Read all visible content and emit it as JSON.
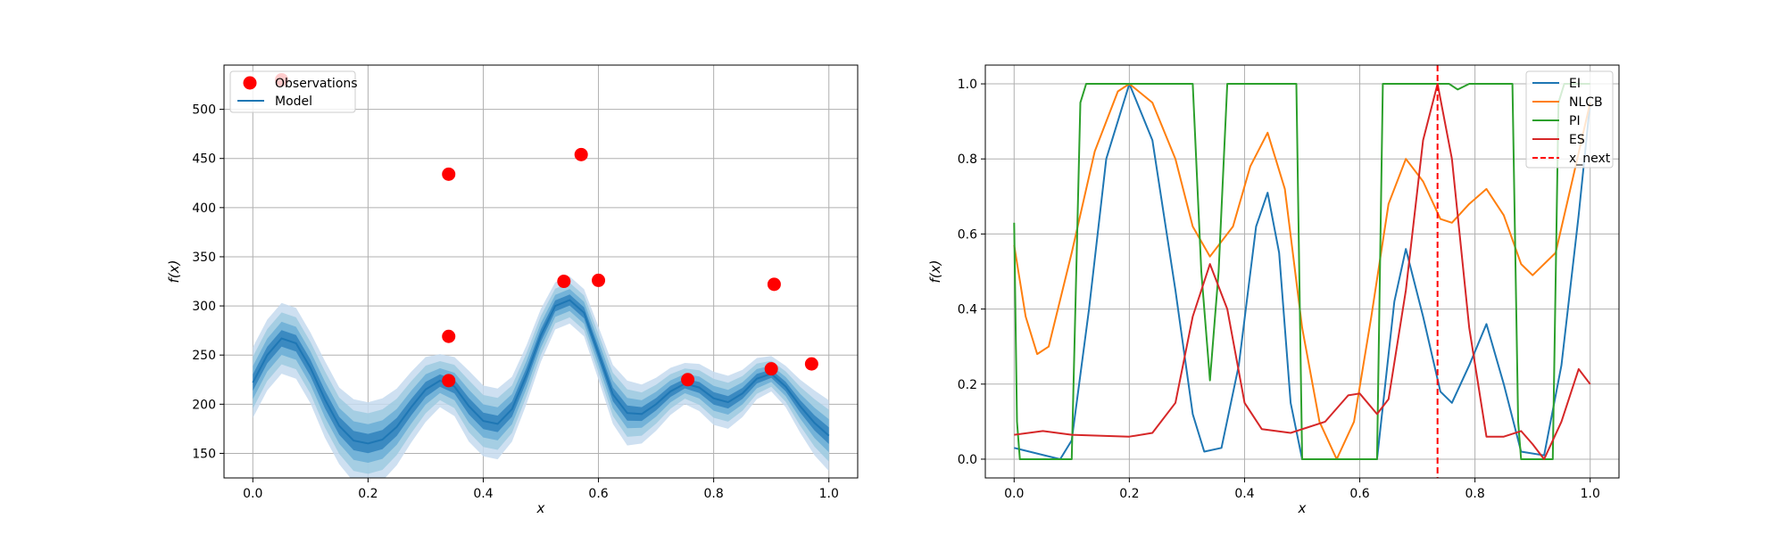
{
  "figure": {
    "background": "#ffffff"
  },
  "chart_data": [
    {
      "type": "scatter",
      "panel": "left",
      "xlabel": "x",
      "ylabel": "f(x)",
      "xlim": [
        -0.05,
        1.05
      ],
      "ylim": [
        125,
        545
      ],
      "xticks": [
        "0.0",
        "0.2",
        "0.4",
        "0.6",
        "0.8",
        "1.0"
      ],
      "yticks": [
        "150",
        "200",
        "250",
        "300",
        "350",
        "400",
        "450",
        "500"
      ],
      "grid": true,
      "legend": {
        "location": "top-left",
        "entries": [
          "Observations",
          "Model"
        ]
      },
      "observations": {
        "name": "Observations",
        "color": "#ff0000",
        "points": [
          {
            "x": 0.05,
            "y": 530
          },
          {
            "x": 0.34,
            "y": 434
          },
          {
            "x": 0.34,
            "y": 269
          },
          {
            "x": 0.34,
            "y": 224
          },
          {
            "x": 0.54,
            "y": 325
          },
          {
            "x": 0.57,
            "y": 454
          },
          {
            "x": 0.6,
            "y": 326
          },
          {
            "x": 0.755,
            "y": 225
          },
          {
            "x": 0.9,
            "y": 236
          },
          {
            "x": 0.905,
            "y": 322
          },
          {
            "x": 0.97,
            "y": 241
          }
        ]
      },
      "model": {
        "name": "Model",
        "color": "#1f77b4",
        "x": [
          0.0,
          0.025,
          0.05,
          0.075,
          0.1,
          0.125,
          0.15,
          0.175,
          0.2,
          0.225,
          0.25,
          0.275,
          0.3,
          0.325,
          0.35,
          0.375,
          0.4,
          0.425,
          0.45,
          0.475,
          0.5,
          0.525,
          0.55,
          0.575,
          0.6,
          0.625,
          0.65,
          0.675,
          0.7,
          0.725,
          0.75,
          0.775,
          0.8,
          0.825,
          0.85,
          0.875,
          0.9,
          0.925,
          0.95,
          0.975,
          1.0
        ],
        "mean": [
          222,
          250,
          267,
          262,
          237,
          205,
          178,
          163,
          160,
          164,
          177,
          197,
          215,
          224,
          218,
          198,
          183,
          180,
          195,
          230,
          270,
          300,
          306,
          293,
          252,
          210,
          191,
          190,
          200,
          213,
          221,
          217,
          206,
          202,
          211,
          226,
          231,
          218,
          198,
          181,
          168
        ],
        "band_sd": [
          12,
          12,
          12,
          12,
          12,
          13,
          13,
          14,
          14,
          14,
          13,
          12,
          11,
          9,
          10,
          12,
          12,
          12,
          11,
          10,
          9,
          8,
          8,
          8,
          9,
          10,
          11,
          10,
          9,
          8,
          7,
          8,
          9,
          9,
          8,
          7,
          6,
          7,
          9,
          11,
          12
        ]
      }
    },
    {
      "type": "line",
      "panel": "right",
      "xlabel": "x",
      "ylabel": "f(x)",
      "xlim": [
        -0.05,
        1.05
      ],
      "ylim": [
        -0.05,
        1.05
      ],
      "xticks": [
        "0.0",
        "0.2",
        "0.4",
        "0.6",
        "0.8",
        "1.0"
      ],
      "yticks": [
        "0.0",
        "0.2",
        "0.4",
        "0.6",
        "0.8",
        "1.0"
      ],
      "grid": true,
      "legend": {
        "location": "top-right",
        "entries": [
          "EI",
          "NLCB",
          "PI",
          "ES",
          "x_next"
        ]
      },
      "x_next": {
        "name": "x_next",
        "value": 0.735,
        "color": "#ff0000"
      },
      "series": [
        {
          "name": "EI",
          "color": "#1f77b4",
          "points": [
            [
              0,
              0.03
            ],
            [
              0.08,
              0
            ],
            [
              0.1,
              0.05
            ],
            [
              0.13,
              0.4
            ],
            [
              0.16,
              0.8
            ],
            [
              0.2,
              1.0
            ],
            [
              0.24,
              0.85
            ],
            [
              0.28,
              0.45
            ],
            [
              0.31,
              0.12
            ],
            [
              0.33,
              0.02
            ],
            [
              0.36,
              0.03
            ],
            [
              0.39,
              0.25
            ],
            [
              0.42,
              0.62
            ],
            [
              0.44,
              0.71
            ],
            [
              0.46,
              0.55
            ],
            [
              0.48,
              0.15
            ],
            [
              0.5,
              0
            ],
            [
              0.63,
              0
            ],
            [
              0.66,
              0.42
            ],
            [
              0.68,
              0.56
            ],
            [
              0.71,
              0.38
            ],
            [
              0.74,
              0.18
            ],
            [
              0.76,
              0.15
            ],
            [
              0.79,
              0.25
            ],
            [
              0.82,
              0.36
            ],
            [
              0.85,
              0.2
            ],
            [
              0.88,
              0.02
            ],
            [
              0.92,
              0.01
            ],
            [
              0.95,
              0.25
            ],
            [
              0.98,
              0.65
            ],
            [
              1.0,
              0.95
            ]
          ]
        },
        {
          "name": "NLCB",
          "color": "#ff7f0e",
          "points": [
            [
              0,
              0.57
            ],
            [
              0.02,
              0.38
            ],
            [
              0.04,
              0.28
            ],
            [
              0.06,
              0.3
            ],
            [
              0.1,
              0.55
            ],
            [
              0.14,
              0.82
            ],
            [
              0.18,
              0.98
            ],
            [
              0.2,
              1.0
            ],
            [
              0.24,
              0.95
            ],
            [
              0.28,
              0.8
            ],
            [
              0.31,
              0.62
            ],
            [
              0.34,
              0.54
            ],
            [
              0.38,
              0.62
            ],
            [
              0.41,
              0.78
            ],
            [
              0.44,
              0.87
            ],
            [
              0.47,
              0.72
            ],
            [
              0.5,
              0.35
            ],
            [
              0.53,
              0.1
            ],
            [
              0.56,
              0
            ],
            [
              0.59,
              0.1
            ],
            [
              0.62,
              0.38
            ],
            [
              0.65,
              0.68
            ],
            [
              0.68,
              0.8
            ],
            [
              0.71,
              0.74
            ],
            [
              0.74,
              0.64
            ],
            [
              0.76,
              0.63
            ],
            [
              0.79,
              0.68
            ],
            [
              0.82,
              0.72
            ],
            [
              0.85,
              0.65
            ],
            [
              0.88,
              0.52
            ],
            [
              0.9,
              0.49
            ],
            [
              0.94,
              0.55
            ],
            [
              0.97,
              0.75
            ],
            [
              1.0,
              0.95
            ]
          ]
        },
        {
          "name": "PI",
          "color": "#2ca02c",
          "points": [
            [
              0,
              0.63
            ],
            [
              0.005,
              0.1
            ],
            [
              0.01,
              0
            ],
            [
              0.1,
              0
            ],
            [
              0.115,
              0.95
            ],
            [
              0.125,
              1.0
            ],
            [
              0.31,
              1.0
            ],
            [
              0.325,
              0.5
            ],
            [
              0.34,
              0.21
            ],
            [
              0.355,
              0.5
            ],
            [
              0.37,
              1.0
            ],
            [
              0.49,
              1.0
            ],
            [
              0.5,
              0
            ],
            [
              0.63,
              0
            ],
            [
              0.64,
              1.0
            ],
            [
              0.755,
              1.0
            ],
            [
              0.77,
              0.985
            ],
            [
              0.79,
              1.0
            ],
            [
              0.865,
              1.0
            ],
            [
              0.875,
              0.1
            ],
            [
              0.88,
              0
            ],
            [
              0.935,
              0
            ],
            [
              0.945,
              0.95
            ],
            [
              0.955,
              1.0
            ],
            [
              1.0,
              1.0
            ]
          ]
        },
        {
          "name": "ES",
          "color": "#d62728",
          "points": [
            [
              0,
              0.065
            ],
            [
              0.05,
              0.075
            ],
            [
              0.1,
              0.065
            ],
            [
              0.2,
              0.06
            ],
            [
              0.24,
              0.07
            ],
            [
              0.28,
              0.15
            ],
            [
              0.31,
              0.38
            ],
            [
              0.34,
              0.52
            ],
            [
              0.37,
              0.4
            ],
            [
              0.4,
              0.15
            ],
            [
              0.43,
              0.08
            ],
            [
              0.48,
              0.07
            ],
            [
              0.54,
              0.1
            ],
            [
              0.58,
              0.17
            ],
            [
              0.6,
              0.175
            ],
            [
              0.63,
              0.12
            ],
            [
              0.65,
              0.16
            ],
            [
              0.68,
              0.45
            ],
            [
              0.71,
              0.85
            ],
            [
              0.735,
              1.0
            ],
            [
              0.76,
              0.8
            ],
            [
              0.79,
              0.35
            ],
            [
              0.82,
              0.06
            ],
            [
              0.85,
              0.06
            ],
            [
              0.88,
              0.075
            ],
            [
              0.9,
              0.04
            ],
            [
              0.92,
              0
            ],
            [
              0.95,
              0.1
            ],
            [
              0.98,
              0.24
            ],
            [
              1.0,
              0.2
            ]
          ]
        }
      ]
    }
  ]
}
